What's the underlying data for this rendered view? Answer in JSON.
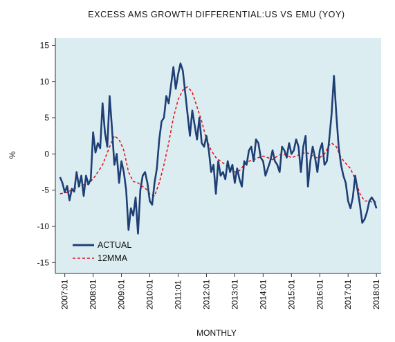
{
  "chart_data": {
    "type": "line",
    "title": "EXCESS AMS GROWTH DIFFERENTIAL:US VS EMU (YOY)",
    "xlabel": "MONTHLY",
    "ylabel": "%",
    "ylim": [
      -16.5,
      16
    ],
    "xlim": [
      "2006-09",
      "2018-03"
    ],
    "yticks": [
      15,
      10,
      5,
      0,
      -5,
      -10,
      -15
    ],
    "xticks": [
      "2007:01",
      "2008:01",
      "2009:01",
      "2010:01",
      "2011:01",
      "2012:01",
      "2013:01",
      "2014:01",
      "2015:01",
      "2016:01",
      "2017:01",
      "2018:01"
    ],
    "grid": false,
    "background": "#dcedf2",
    "legend_position": "bottom-left",
    "series": [
      {
        "name": "ACTUAL",
        "color": "#1f3f75",
        "style": "solid",
        "points": [
          [
            "2006-11",
            -3.2
          ],
          [
            "2006-12",
            -4.0
          ],
          [
            "2007-01",
            -5.3
          ],
          [
            "2007-02",
            -4.4
          ],
          [
            "2007-03",
            -6.4
          ],
          [
            "2007-04",
            -4.8
          ],
          [
            "2007-05",
            -5.2
          ],
          [
            "2007-06",
            -2.5
          ],
          [
            "2007-07",
            -4.5
          ],
          [
            "2007-08",
            -3.0
          ],
          [
            "2007-09",
            -5.8
          ],
          [
            "2007-10",
            -3.0
          ],
          [
            "2007-11",
            -4.2
          ],
          [
            "2007-12",
            -3.5
          ],
          [
            "2008-01",
            3.0
          ],
          [
            "2008-02",
            0.2
          ],
          [
            "2008-03",
            1.5
          ],
          [
            "2008-04",
            0.8
          ],
          [
            "2008-05",
            7.0
          ],
          [
            "2008-06",
            3.0
          ],
          [
            "2008-07",
            1.0
          ],
          [
            "2008-08",
            8.0
          ],
          [
            "2008-09",
            3.5
          ],
          [
            "2008-10",
            -1.5
          ],
          [
            "2008-11",
            0.0
          ],
          [
            "2008-12",
            -4.0
          ],
          [
            "2009-01",
            -1.0
          ],
          [
            "2009-02",
            -2.5
          ],
          [
            "2009-03",
            -5.0
          ],
          [
            "2009-04",
            -10.5
          ],
          [
            "2009-05",
            -7.5
          ],
          [
            "2009-06",
            -8.5
          ],
          [
            "2009-07",
            -6.0
          ],
          [
            "2009-08",
            -11.0
          ],
          [
            "2009-09",
            -5.0
          ],
          [
            "2009-10",
            -3.0
          ],
          [
            "2009-11",
            -2.5
          ],
          [
            "2009-12",
            -4.0
          ],
          [
            "2010-01",
            -6.5
          ],
          [
            "2010-02",
            -7.0
          ],
          [
            "2010-03",
            -4.0
          ],
          [
            "2010-04",
            -2.0
          ],
          [
            "2010-05",
            2.0
          ],
          [
            "2010-06",
            4.5
          ],
          [
            "2010-07",
            5.0
          ],
          [
            "2010-08",
            8.0
          ],
          [
            "2010-09",
            7.0
          ],
          [
            "2010-10",
            9.5
          ],
          [
            "2010-11",
            12.0
          ],
          [
            "2010-12",
            9.0
          ],
          [
            "2011-01",
            11.0
          ],
          [
            "2011-02",
            12.5
          ],
          [
            "2011-03",
            11.5
          ],
          [
            "2011-04",
            8.5
          ],
          [
            "2011-05",
            5.5
          ],
          [
            "2011-06",
            2.5
          ],
          [
            "2011-07",
            6.0
          ],
          [
            "2011-08",
            4.0
          ],
          [
            "2011-09",
            2.0
          ],
          [
            "2011-10",
            5.0
          ],
          [
            "2011-11",
            1.5
          ],
          [
            "2011-12",
            1.0
          ],
          [
            "2012-01",
            2.5
          ],
          [
            "2012-02",
            0.5
          ],
          [
            "2012-03",
            -2.5
          ],
          [
            "2012-04",
            -1.5
          ],
          [
            "2012-05",
            -5.5
          ],
          [
            "2012-06",
            -1.0
          ],
          [
            "2012-07",
            -3.0
          ],
          [
            "2012-08",
            -2.5
          ],
          [
            "2012-09",
            -3.5
          ],
          [
            "2012-10",
            -1.0
          ],
          [
            "2012-11",
            -2.5
          ],
          [
            "2012-12",
            -1.5
          ],
          [
            "2013-01",
            -4.0
          ],
          [
            "2013-02",
            -2.0
          ],
          [
            "2013-03",
            -3.5
          ],
          [
            "2013-04",
            -4.5
          ],
          [
            "2013-05",
            -1.0
          ],
          [
            "2013-06",
            -1.5
          ],
          [
            "2013-07",
            0.5
          ],
          [
            "2013-08",
            1.0
          ],
          [
            "2013-09",
            -1.0
          ],
          [
            "2013-10",
            2.0
          ],
          [
            "2013-11",
            1.5
          ],
          [
            "2013-12",
            -0.5
          ],
          [
            "2014-01",
            -1.0
          ],
          [
            "2014-02",
            -3.0
          ],
          [
            "2014-03",
            -2.0
          ],
          [
            "2014-04",
            -1.0
          ],
          [
            "2014-05",
            0.5
          ],
          [
            "2014-06",
            -1.0
          ],
          [
            "2014-07",
            -1.5
          ],
          [
            "2014-08",
            -2.5
          ],
          [
            "2014-09",
            1.0
          ],
          [
            "2014-10",
            0.5
          ],
          [
            "2014-11",
            -0.5
          ],
          [
            "2014-12",
            1.5
          ],
          [
            "2015-01",
            0.0
          ],
          [
            "2015-02",
            0.5
          ],
          [
            "2015-03",
            2.0
          ],
          [
            "2015-04",
            1.0
          ],
          [
            "2015-05",
            -2.5
          ],
          [
            "2015-06",
            1.0
          ],
          [
            "2015-07",
            2.5
          ],
          [
            "2015-08",
            -4.5
          ],
          [
            "2015-09",
            -1.0
          ],
          [
            "2015-10",
            1.0
          ],
          [
            "2015-11",
            -0.5
          ],
          [
            "2015-12",
            -2.5
          ],
          [
            "2016-01",
            0.5
          ],
          [
            "2016-02",
            1.5
          ],
          [
            "2016-03",
            -1.5
          ],
          [
            "2016-04",
            -1.0
          ],
          [
            "2016-05",
            2.0
          ],
          [
            "2016-06",
            5.5
          ],
          [
            "2016-07",
            10.8
          ],
          [
            "2016-08",
            5.5
          ],
          [
            "2016-09",
            1.0
          ],
          [
            "2016-10",
            -1.5
          ],
          [
            "2016-11",
            -3.0
          ],
          [
            "2016-12",
            -4.0
          ],
          [
            "2017-01",
            -6.5
          ],
          [
            "2017-02",
            -7.5
          ],
          [
            "2017-03",
            -6.0
          ],
          [
            "2017-04",
            -3.0
          ],
          [
            "2017-05",
            -5.0
          ],
          [
            "2017-06",
            -7.0
          ],
          [
            "2017-07",
            -9.5
          ],
          [
            "2017-08",
            -9.0
          ],
          [
            "2017-09",
            -8.0
          ],
          [
            "2017-10",
            -6.5
          ],
          [
            "2017-11",
            -6.0
          ],
          [
            "2017-12",
            -6.5
          ],
          [
            "2018-01",
            -7.5
          ]
        ]
      },
      {
        "name": "12MMA",
        "color": "#e8141b",
        "style": "dashed",
        "points": [
          [
            "2006-11",
            -5.5
          ],
          [
            "2007-02",
            -5.3
          ],
          [
            "2007-05",
            -4.8
          ],
          [
            "2007-08",
            -4.3
          ],
          [
            "2007-11",
            -4.2
          ],
          [
            "2008-02",
            -3.0
          ],
          [
            "2008-05",
            -1.5
          ],
          [
            "2008-08",
            1.0
          ],
          [
            "2008-10",
            2.5
          ],
          [
            "2008-12",
            2.0
          ],
          [
            "2009-02",
            0.5
          ],
          [
            "2009-04",
            -2.5
          ],
          [
            "2009-06",
            -3.8
          ],
          [
            "2009-08",
            -4.0
          ],
          [
            "2009-10",
            -4.5
          ],
          [
            "2009-12",
            -5.0
          ],
          [
            "2010-01",
            -5.5
          ],
          [
            "2010-03",
            -5.8
          ],
          [
            "2010-05",
            -4.0
          ],
          [
            "2010-07",
            -1.5
          ],
          [
            "2010-09",
            1.5
          ],
          [
            "2010-11",
            5.0
          ],
          [
            "2011-01",
            7.5
          ],
          [
            "2011-03",
            8.8
          ],
          [
            "2011-05",
            9.3
          ],
          [
            "2011-07",
            8.5
          ],
          [
            "2011-09",
            6.5
          ],
          [
            "2011-11",
            4.5
          ],
          [
            "2012-01",
            2.0
          ],
          [
            "2012-03",
            0.5
          ],
          [
            "2012-05",
            -0.5
          ],
          [
            "2012-07",
            -1.0
          ],
          [
            "2012-09",
            -1.5
          ],
          [
            "2012-11",
            -2.0
          ],
          [
            "2013-01",
            -2.5
          ],
          [
            "2013-03",
            -2.3
          ],
          [
            "2013-05",
            -1.5
          ],
          [
            "2013-07",
            -1.0
          ],
          [
            "2013-09",
            -0.8
          ],
          [
            "2013-11",
            -0.5
          ],
          [
            "2014-01",
            -0.3
          ],
          [
            "2014-03",
            -0.5
          ],
          [
            "2014-05",
            -0.8
          ],
          [
            "2014-07",
            -0.3
          ],
          [
            "2014-09",
            0.0
          ],
          [
            "2014-11",
            -0.2
          ],
          [
            "2015-01",
            -0.5
          ],
          [
            "2015-03",
            -0.3
          ],
          [
            "2015-05",
            0.0
          ],
          [
            "2015-07",
            0.2
          ],
          [
            "2015-09",
            0.0
          ],
          [
            "2015-11",
            -0.5
          ],
          [
            "2016-01",
            -0.5
          ],
          [
            "2016-03",
            0.0
          ],
          [
            "2016-05",
            1.2
          ],
          [
            "2016-06",
            1.5
          ],
          [
            "2016-08",
            1.0
          ],
          [
            "2016-10",
            -0.5
          ],
          [
            "2016-12",
            -1.3
          ],
          [
            "2017-02",
            -2.0
          ],
          [
            "2017-04",
            -3.5
          ],
          [
            "2017-06",
            -5.5
          ],
          [
            "2017-08",
            -6.5
          ],
          [
            "2017-10",
            -6.5
          ],
          [
            "2017-12",
            -6.8
          ],
          [
            "2018-01",
            -6.5
          ]
        ]
      }
    ]
  }
}
